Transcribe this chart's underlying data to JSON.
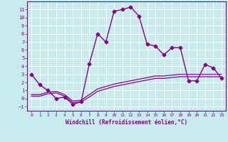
{
  "xlabel": "Windchill (Refroidissement éolien,°C)",
  "background_color": "#c8eced",
  "grid_color": "#aad4d5",
  "line_color": "#880088",
  "xlim": [
    -0.5,
    23.5
  ],
  "ylim": [
    -1.5,
    12.0
  ],
  "yticks": [
    -1,
    0,
    1,
    2,
    3,
    4,
    5,
    6,
    7,
    8,
    9,
    10,
    11
  ],
  "xticks": [
    0,
    1,
    2,
    3,
    4,
    5,
    6,
    7,
    8,
    9,
    10,
    11,
    12,
    13,
    14,
    15,
    16,
    17,
    18,
    19,
    20,
    21,
    22,
    23
  ],
  "series": [
    {
      "x": [
        0,
        1,
        2,
        3,
        4,
        5,
        6,
        7,
        8,
        9,
        10,
        11,
        12,
        13,
        14,
        15,
        16,
        17,
        18,
        19,
        20,
        21,
        22,
        23
      ],
      "y": [
        3.0,
        1.7,
        1.0,
        0.0,
        0.2,
        -0.7,
        -0.4,
        4.3,
        8.0,
        7.0,
        10.8,
        11.0,
        11.3,
        10.2,
        6.7,
        6.5,
        5.4,
        6.3,
        6.3,
        2.2,
        2.2,
        4.2,
        3.8,
        2.5
      ],
      "marker": "D",
      "markersize": 2.5,
      "linewidth": 1.0
    },
    {
      "x": [
        0,
        1,
        2,
        3,
        4,
        5,
        6,
        7,
        8,
        9,
        10,
        11,
        12,
        13,
        14,
        15,
        16,
        17,
        18,
        19,
        20,
        21,
        22,
        23
      ],
      "y": [
        0.5,
        0.5,
        0.8,
        0.9,
        0.5,
        -0.3,
        -0.2,
        0.5,
        1.2,
        1.5,
        1.8,
        2.0,
        2.2,
        2.4,
        2.6,
        2.8,
        2.8,
        2.9,
        3.0,
        3.0,
        3.0,
        3.0,
        3.0,
        3.0
      ],
      "marker": null,
      "markersize": 0,
      "linewidth": 0.9
    },
    {
      "x": [
        0,
        1,
        2,
        3,
        4,
        5,
        6,
        7,
        8,
        9,
        10,
        11,
        12,
        13,
        14,
        15,
        16,
        17,
        18,
        19,
        20,
        21,
        22,
        23
      ],
      "y": [
        0.3,
        0.3,
        0.6,
        0.7,
        0.3,
        -0.5,
        -0.4,
        0.2,
        0.9,
        1.2,
        1.5,
        1.7,
        1.9,
        2.1,
        2.3,
        2.5,
        2.5,
        2.6,
        2.7,
        2.7,
        2.7,
        2.7,
        2.7,
        2.7
      ],
      "marker": null,
      "markersize": 0,
      "linewidth": 0.9
    }
  ]
}
